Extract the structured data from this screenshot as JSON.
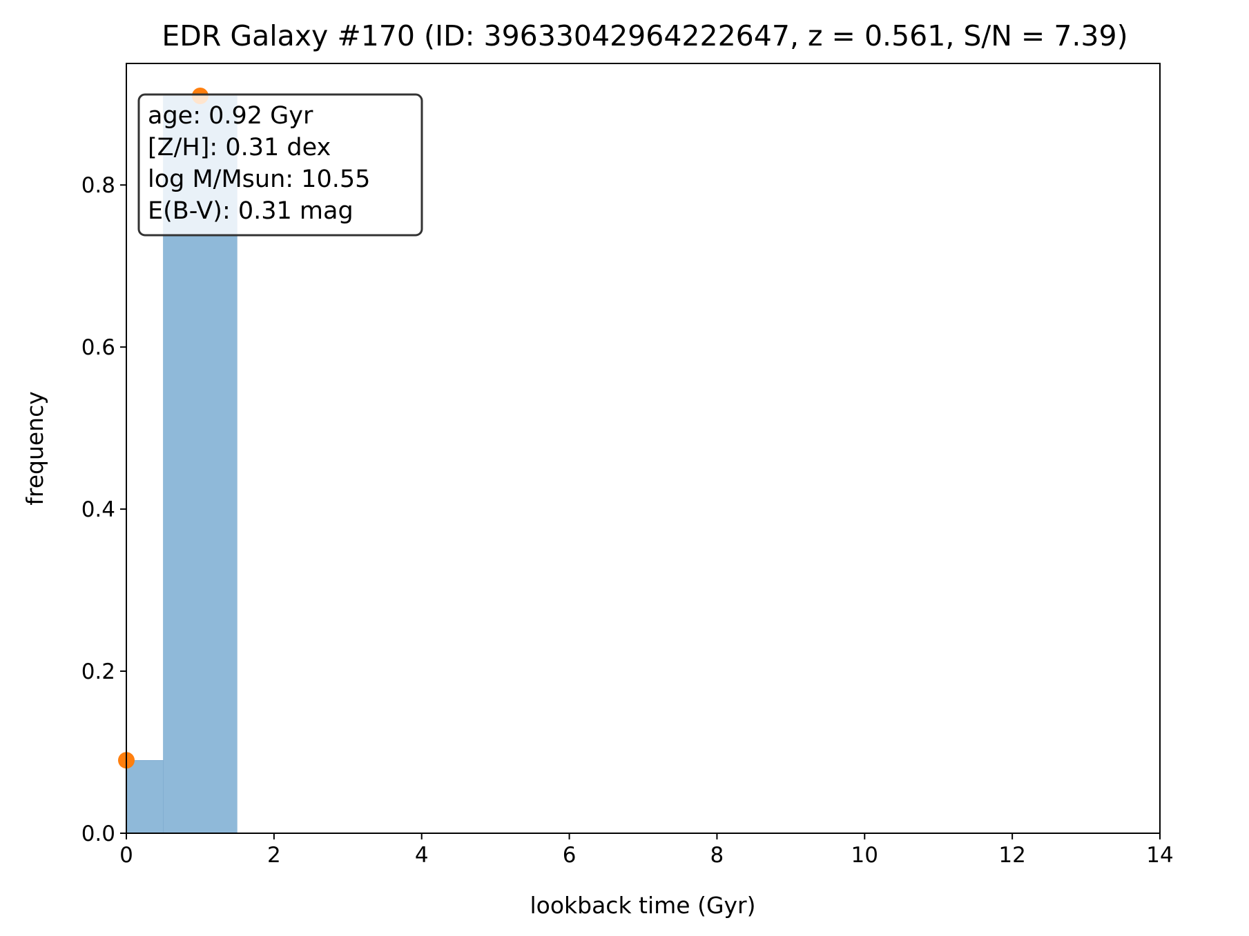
{
  "chart_data": {
    "type": "bar",
    "title": "EDR Galaxy #170 (ID: 39633042964222647, z = 0.561, S/N = 7.39)",
    "xlabel": "lookback time (Gyr)",
    "ylabel": "frequency",
    "xlim": [
      0,
      14
    ],
    "ylim": [
      0,
      0.95
    ],
    "xticks": [
      0,
      2,
      4,
      6,
      8,
      10,
      12,
      14
    ],
    "xtick_labels": [
      "0",
      "2",
      "4",
      "6",
      "8",
      "10",
      "12",
      "14"
    ],
    "yticks": [
      0.0,
      0.2,
      0.4,
      0.6,
      0.8
    ],
    "ytick_labels": [
      "0.0",
      "0.2",
      "0.4",
      "0.6",
      "0.8"
    ],
    "grid": false,
    "bars": [
      {
        "x_start": 0.0,
        "x_end": 0.5,
        "value": 0.09
      },
      {
        "x_start": 0.5,
        "x_end": 1.5,
        "value": 0.91
      }
    ],
    "points": [
      {
        "x": 0.0,
        "y": 0.09
      },
      {
        "x": 1.0,
        "y": 0.91
      }
    ],
    "annotation": {
      "placement": "top-left",
      "lines": [
        "age: 0.92 Gyr",
        "[Z/H]: 0.31 dex",
        "log M/Msun: 10.55",
        "E(B-V): 0.31 mag"
      ]
    },
    "colors": {
      "bars": "#8fb9d9",
      "points": "#ff7f0e"
    }
  }
}
